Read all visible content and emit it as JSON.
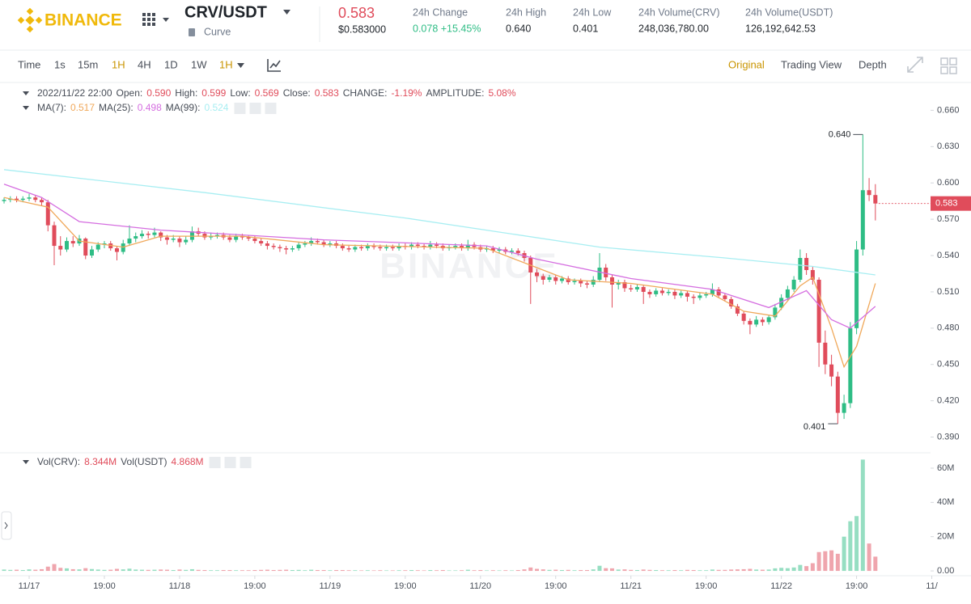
{
  "header": {
    "logo": "BINANCE",
    "pair": "CRV/USDT",
    "project": "Curve",
    "price": "0.583",
    "price_usd": "$0.583000",
    "stats": [
      {
        "label": "24h Change",
        "value": "0.078 +15.45%"
      },
      {
        "label": "24h High",
        "value": "0.640"
      },
      {
        "label": "24h Low",
        "value": "0.401"
      },
      {
        "label": "24h Volume(CRV)",
        "value": "248,036,780.00"
      },
      {
        "label": "24h Volume(USDT)",
        "value": "126,192,642.53"
      }
    ]
  },
  "toolbar": {
    "intervals": [
      "Time",
      "1s",
      "15m",
      "1H",
      "4H",
      "1D",
      "1W",
      "1H"
    ],
    "views": [
      "Original",
      "Trading View",
      "Depth"
    ]
  },
  "chart_data": {
    "type": "candlestick",
    "watermark": "BINANCE",
    "up_color": "#2ebd85",
    "down_color": "#e04c5b",
    "legend": {
      "time": "2022/11/22 22:00",
      "items": [
        {
          "label": "Open:",
          "value": "0.590"
        },
        {
          "label": "High:",
          "value": "0.599"
        },
        {
          "label": "Low:",
          "value": "0.569"
        },
        {
          "label": "Close:",
          "value": "0.583"
        },
        {
          "label": "CHANGE:",
          "value": "-1.19%"
        },
        {
          "label": "AMPLITUDE:",
          "value": "5.08%"
        }
      ]
    },
    "xlim": [
      -0.65,
      147.8
    ],
    "xticks": [
      {
        "value": 4,
        "label": "11/17"
      },
      {
        "value": 16,
        "label": "19:00"
      },
      {
        "value": 28,
        "label": "11/18"
      },
      {
        "value": 40,
        "label": "19:00"
      },
      {
        "value": 52,
        "label": "11/19"
      },
      {
        "value": 64,
        "label": "19:00"
      },
      {
        "value": 76,
        "label": "11/20"
      },
      {
        "value": 88,
        "label": "19:00"
      },
      {
        "value": 100,
        "label": "11/21"
      },
      {
        "value": 112,
        "label": "19:00"
      },
      {
        "value": 124,
        "label": "11/22"
      },
      {
        "value": 136,
        "label": "19:00"
      },
      {
        "value": 148,
        "label": "11/"
      }
    ],
    "ylim": [
      0.377,
      0.681
    ],
    "yticks": [
      {
        "value": 0.66,
        "label": "0.660"
      },
      {
        "value": 0.63,
        "label": "0.630"
      },
      {
        "value": 0.6,
        "label": "0.600"
      },
      {
        "value": 0.57,
        "label": "0.570"
      },
      {
        "value": 0.54,
        "label": "0.540"
      },
      {
        "value": 0.51,
        "label": "0.510"
      },
      {
        "value": 0.48,
        "label": "0.480"
      },
      {
        "value": 0.45,
        "label": "0.450"
      },
      {
        "value": 0.42,
        "label": "0.420"
      },
      {
        "value": 0.39,
        "label": "0.390"
      }
    ],
    "grid": false,
    "annotations": [
      {
        "value": 0.64,
        "label": "0.640"
      },
      {
        "value": 0.401,
        "label": "0.401"
      }
    ],
    "candles": [
      [
        0.585,
        0.588,
        0.583,
        0.586,
        0.8
      ],
      [
        0.586,
        0.589,
        0.584,
        0.587,
        0.6
      ],
      [
        0.587,
        0.589,
        0.584,
        0.586,
        0.7
      ],
      [
        0.586,
        0.589,
        0.584,
        0.587,
        0.5
      ],
      [
        0.587,
        0.591,
        0.585,
        0.588,
        0.9
      ],
      [
        0.588,
        0.59,
        0.584,
        0.586,
        0.7
      ],
      [
        0.586,
        0.588,
        0.581,
        0.584,
        1.0
      ],
      [
        0.584,
        0.586,
        0.56,
        0.565,
        2.5
      ],
      [
        0.565,
        0.568,
        0.532,
        0.548,
        4.0
      ],
      [
        0.548,
        0.556,
        0.54,
        0.545,
        1.8
      ],
      [
        0.545,
        0.555,
        0.543,
        0.552,
        1.5
      ],
      [
        0.552,
        0.556,
        0.547,
        0.55,
        1.0
      ],
      [
        0.55,
        0.557,
        0.548,
        0.554,
        0.9
      ],
      [
        0.554,
        0.555,
        0.537,
        0.54,
        1.6
      ],
      [
        0.54,
        0.548,
        0.538,
        0.545,
        1.1
      ],
      [
        0.545,
        0.551,
        0.543,
        0.549,
        0.8
      ],
      [
        0.549,
        0.552,
        0.546,
        0.55,
        0.6
      ],
      [
        0.55,
        0.552,
        0.544,
        0.546,
        0.7
      ],
      [
        0.546,
        0.548,
        0.536,
        0.543,
        1.2
      ],
      [
        0.543,
        0.553,
        0.541,
        0.55,
        0.9
      ],
      [
        0.55,
        0.565,
        0.548,
        0.554,
        1.3
      ],
      [
        0.554,
        0.559,
        0.551,
        0.556,
        0.8
      ],
      [
        0.556,
        0.561,
        0.554,
        0.558,
        0.7
      ],
      [
        0.558,
        0.56,
        0.554,
        0.557,
        0.6
      ],
      [
        0.557,
        0.563,
        0.555,
        0.559,
        0.7
      ],
      [
        0.559,
        0.56,
        0.552,
        0.555,
        0.8
      ],
      [
        0.555,
        0.557,
        0.549,
        0.553,
        0.7
      ],
      [
        0.553,
        0.557,
        0.551,
        0.554,
        0.5
      ],
      [
        0.554,
        0.556,
        0.547,
        0.551,
        0.8
      ],
      [
        0.551,
        0.556,
        0.549,
        0.553,
        0.6
      ],
      [
        0.553,
        0.564,
        0.551,
        0.56,
        1.0
      ],
      [
        0.56,
        0.563,
        0.556,
        0.558,
        0.6
      ],
      [
        0.558,
        0.56,
        0.553,
        0.555,
        0.5
      ],
      [
        0.555,
        0.559,
        0.553,
        0.556,
        0.4
      ],
      [
        0.556,
        0.559,
        0.554,
        0.557,
        0.4
      ],
      [
        0.557,
        0.559,
        0.553,
        0.555,
        0.5
      ],
      [
        0.555,
        0.557,
        0.551,
        0.553,
        0.5
      ],
      [
        0.553,
        0.558,
        0.551,
        0.556,
        0.4
      ],
      [
        0.556,
        0.558,
        0.553,
        0.555,
        0.4
      ],
      [
        0.555,
        0.557,
        0.552,
        0.554,
        0.4
      ],
      [
        0.554,
        0.556,
        0.55,
        0.552,
        0.5
      ],
      [
        0.552,
        0.554,
        0.548,
        0.55,
        0.6
      ],
      [
        0.55,
        0.552,
        0.545,
        0.548,
        0.7
      ],
      [
        0.548,
        0.55,
        0.545,
        0.547,
        0.5
      ],
      [
        0.547,
        0.549,
        0.543,
        0.546,
        0.6
      ],
      [
        0.546,
        0.548,
        0.541,
        0.545,
        0.7
      ],
      [
        0.545,
        0.548,
        0.543,
        0.546,
        0.5
      ],
      [
        0.546,
        0.551,
        0.544,
        0.549,
        0.6
      ],
      [
        0.549,
        0.552,
        0.547,
        0.55,
        0.4
      ],
      [
        0.55,
        0.555,
        0.548,
        0.552,
        0.7
      ],
      [
        0.552,
        0.554,
        0.549,
        0.551,
        0.5
      ],
      [
        0.551,
        0.553,
        0.547,
        0.549,
        0.5
      ],
      [
        0.549,
        0.552,
        0.547,
        0.55,
        0.4
      ],
      [
        0.55,
        0.552,
        0.546,
        0.548,
        0.5
      ],
      [
        0.548,
        0.55,
        0.544,
        0.546,
        0.5
      ],
      [
        0.546,
        0.548,
        0.543,
        0.545,
        0.4
      ],
      [
        0.545,
        0.549,
        0.543,
        0.547,
        0.4
      ],
      [
        0.547,
        0.549,
        0.544,
        0.546,
        0.3
      ],
      [
        0.546,
        0.55,
        0.544,
        0.548,
        0.4
      ],
      [
        0.548,
        0.55,
        0.545,
        0.547,
        0.3
      ],
      [
        0.547,
        0.549,
        0.544,
        0.546,
        0.4
      ],
      [
        0.546,
        0.549,
        0.544,
        0.547,
        0.3
      ],
      [
        0.547,
        0.549,
        0.544,
        0.546,
        0.3
      ],
      [
        0.546,
        0.55,
        0.544,
        0.548,
        0.4
      ],
      [
        0.548,
        0.55,
        0.545,
        0.547,
        0.4
      ],
      [
        0.547,
        0.551,
        0.545,
        0.549,
        0.5
      ],
      [
        0.549,
        0.551,
        0.546,
        0.548,
        0.4
      ],
      [
        0.548,
        0.55,
        0.545,
        0.547,
        0.3
      ],
      [
        0.547,
        0.552,
        0.545,
        0.549,
        0.5
      ],
      [
        0.549,
        0.551,
        0.546,
        0.548,
        0.4
      ],
      [
        0.548,
        0.55,
        0.544,
        0.546,
        0.5
      ],
      [
        0.546,
        0.549,
        0.544,
        0.547,
        0.3
      ],
      [
        0.547,
        0.55,
        0.545,
        0.548,
        0.3
      ],
      [
        0.548,
        0.55,
        0.544,
        0.546,
        0.4
      ],
      [
        0.546,
        0.553,
        0.544,
        0.549,
        0.7
      ],
      [
        0.549,
        0.551,
        0.545,
        0.547,
        0.4
      ],
      [
        0.547,
        0.549,
        0.543,
        0.545,
        0.5
      ],
      [
        0.545,
        0.548,
        0.543,
        0.546,
        0.3
      ],
      [
        0.546,
        0.548,
        0.542,
        0.544,
        0.4
      ],
      [
        0.544,
        0.547,
        0.542,
        0.545,
        0.3
      ],
      [
        0.545,
        0.547,
        0.541,
        0.543,
        0.4
      ],
      [
        0.543,
        0.546,
        0.541,
        0.544,
        0.3
      ],
      [
        0.544,
        0.546,
        0.54,
        0.542,
        0.5
      ],
      [
        0.542,
        0.544,
        0.535,
        0.538,
        0.9
      ],
      [
        0.538,
        0.54,
        0.5,
        0.526,
        2.0
      ],
      [
        0.526,
        0.529,
        0.518,
        0.523,
        1.2
      ],
      [
        0.523,
        0.525,
        0.516,
        0.52,
        0.9
      ],
      [
        0.52,
        0.524,
        0.518,
        0.522,
        0.6
      ],
      [
        0.522,
        0.524,
        0.516,
        0.519,
        0.7
      ],
      [
        0.519,
        0.523,
        0.517,
        0.521,
        0.5
      ],
      [
        0.521,
        0.523,
        0.516,
        0.518,
        0.6
      ],
      [
        0.518,
        0.521,
        0.516,
        0.519,
        0.4
      ],
      [
        0.519,
        0.521,
        0.514,
        0.517,
        0.5
      ],
      [
        0.517,
        0.519,
        0.513,
        0.516,
        0.5
      ],
      [
        0.516,
        0.523,
        0.514,
        0.52,
        0.9
      ],
      [
        0.52,
        0.542,
        0.518,
        0.53,
        3.0
      ],
      [
        0.53,
        0.533,
        0.519,
        0.522,
        1.6
      ],
      [
        0.522,
        0.524,
        0.497,
        0.516,
        1.5
      ],
      [
        0.516,
        0.52,
        0.512,
        0.518,
        0.8
      ],
      [
        0.518,
        0.52,
        0.51,
        0.513,
        0.9
      ],
      [
        0.513,
        0.516,
        0.51,
        0.512,
        0.6
      ],
      [
        0.512,
        0.516,
        0.51,
        0.514,
        0.5
      ],
      [
        0.514,
        0.516,
        0.5,
        0.51,
        0.8
      ],
      [
        0.51,
        0.512,
        0.505,
        0.508,
        0.6
      ],
      [
        0.508,
        0.513,
        0.506,
        0.511,
        0.5
      ],
      [
        0.511,
        0.513,
        0.507,
        0.509,
        0.4
      ],
      [
        0.509,
        0.512,
        0.507,
        0.51,
        0.4
      ],
      [
        0.51,
        0.512,
        0.504,
        0.507,
        0.5
      ],
      [
        0.507,
        0.511,
        0.505,
        0.509,
        0.4
      ],
      [
        0.509,
        0.511,
        0.502,
        0.506,
        0.6
      ],
      [
        0.506,
        0.508,
        0.5,
        0.505,
        0.5
      ],
      [
        0.505,
        0.509,
        0.503,
        0.507,
        0.4
      ],
      [
        0.507,
        0.51,
        0.505,
        0.508,
        0.4
      ],
      [
        0.508,
        0.517,
        0.506,
        0.512,
        0.8
      ],
      [
        0.512,
        0.514,
        0.505,
        0.507,
        0.6
      ],
      [
        0.507,
        0.509,
        0.502,
        0.504,
        0.6
      ],
      [
        0.504,
        0.506,
        0.496,
        0.498,
        0.8
      ],
      [
        0.498,
        0.5,
        0.49,
        0.492,
        0.9
      ],
      [
        0.492,
        0.494,
        0.483,
        0.486,
        1.0
      ],
      [
        0.486,
        0.488,
        0.475,
        0.483,
        1.2
      ],
      [
        0.483,
        0.49,
        0.481,
        0.487,
        0.8
      ],
      [
        0.487,
        0.489,
        0.482,
        0.485,
        0.7
      ],
      [
        0.485,
        0.491,
        0.483,
        0.489,
        0.8
      ],
      [
        0.489,
        0.5,
        0.487,
        0.497,
        1.5
      ],
      [
        0.497,
        0.508,
        0.495,
        0.505,
        1.8
      ],
      [
        0.505,
        0.515,
        0.503,
        0.512,
        1.6
      ],
      [
        0.512,
        0.523,
        0.51,
        0.52,
        2.0
      ],
      [
        0.52,
        0.545,
        0.518,
        0.538,
        3.5
      ],
      [
        0.538,
        0.542,
        0.524,
        0.528,
        2.8
      ],
      [
        0.528,
        0.531,
        0.516,
        0.52,
        4.5
      ],
      [
        0.52,
        0.522,
        0.448,
        0.468,
        11.0
      ],
      [
        0.468,
        0.478,
        0.442,
        0.45,
        11.5
      ],
      [
        0.45,
        0.458,
        0.432,
        0.44,
        12.0
      ],
      [
        0.44,
        0.444,
        0.401,
        0.41,
        10.0
      ],
      [
        0.41,
        0.425,
        0.405,
        0.418,
        20.0
      ],
      [
        0.418,
        0.485,
        0.414,
        0.48,
        29.0
      ],
      [
        0.48,
        0.552,
        0.475,
        0.545,
        32.0
      ],
      [
        0.545,
        0.64,
        0.54,
        0.594,
        65.0
      ],
      [
        0.594,
        0.604,
        0.585,
        0.59,
        16.0
      ],
      [
        0.59,
        0.599,
        0.569,
        0.583,
        8.344
      ]
    ],
    "series": [
      {
        "name": "MA(7):",
        "current": 0.517,
        "color": "#f0a85a",
        "x": [
          0,
          7,
          12,
          19,
          25,
          38,
          51,
          77,
          85,
          90,
          100,
          113,
          118,
          123,
          127,
          129,
          132,
          134,
          136,
          139
        ],
        "values": [
          0.588,
          0.58,
          0.552,
          0.547,
          0.556,
          0.556,
          0.549,
          0.546,
          0.53,
          0.52,
          0.517,
          0.508,
          0.494,
          0.49,
          0.515,
          0.522,
          0.48,
          0.448,
          0.465,
          0.517
        ]
      },
      {
        "name": "MA(25):",
        "current": 0.498,
        "color": "#d56ee0",
        "x": [
          0,
          6,
          12,
          25,
          51,
          77,
          85,
          100,
          113,
          122,
          128,
          132,
          135,
          139
        ],
        "values": [
          0.599,
          0.588,
          0.568,
          0.561,
          0.553,
          0.548,
          0.537,
          0.521,
          0.512,
          0.497,
          0.511,
          0.487,
          0.48,
          0.498
        ]
      },
      {
        "name": "MA(99):",
        "current": 0.524,
        "color": "#a8eef2",
        "x": [
          0,
          32,
          64,
          95,
          115,
          123,
          129,
          139
        ],
        "values": [
          0.611,
          0.592,
          0.571,
          0.547,
          0.538,
          0.534,
          0.531,
          0.524
        ]
      }
    ],
    "volume": {
      "legend": [
        {
          "label": "Vol(CRV):",
          "value": "8.344M"
        },
        {
          "label": "Vol(USDT)",
          "value": "4.868M"
        }
      ],
      "ylim": [
        -2.8,
        66.6
      ],
      "yticks": [
        {
          "value": 60,
          "label": "60M"
        },
        {
          "value": 40,
          "label": "40M"
        },
        {
          "value": 20,
          "label": "20M"
        },
        {
          "value": 0,
          "label": "0.00"
        }
      ]
    }
  }
}
